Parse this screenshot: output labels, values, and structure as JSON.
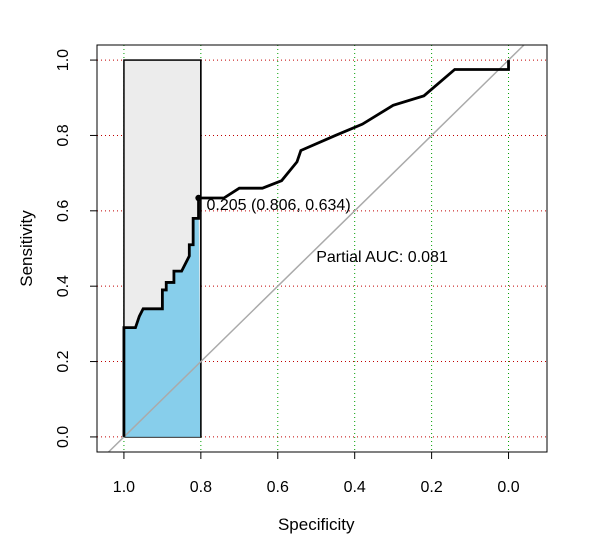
{
  "chart_data": {
    "type": "line",
    "title": "",
    "xlabel": "Specificity",
    "ylabel": "Sensitivity",
    "xlim": [
      1.07,
      -0.1
    ],
    "ylim": [
      -0.04,
      1.04
    ],
    "x_reversed": true,
    "x_ticks": [
      1.0,
      0.8,
      0.6,
      0.4,
      0.2,
      0.0
    ],
    "x_tick_labels": [
      "1.0",
      "0.8",
      "0.6",
      "0.4",
      "0.2",
      "0.0"
    ],
    "y_ticks": [
      0.0,
      0.2,
      0.4,
      0.6,
      0.8,
      1.0
    ],
    "y_tick_labels": [
      "0.0",
      "0.2",
      "0.4",
      "0.6",
      "0.8",
      "1.0"
    ],
    "grid": true,
    "grid_colors": {
      "x": "#00a000",
      "y": "#c00000"
    },
    "line_color": "#000000",
    "diagonal_color": "#aaaaaa",
    "partial_fill_color": "#87ceeb",
    "partial_box_color": "#ececec",
    "partial_range": [
      1.0,
      0.8
    ],
    "roc_points": [
      [
        1.0,
        0.0
      ],
      [
        1.0,
        0.29
      ],
      [
        0.97,
        0.29
      ],
      [
        0.96,
        0.32
      ],
      [
        0.95,
        0.34
      ],
      [
        0.9,
        0.34
      ],
      [
        0.9,
        0.39
      ],
      [
        0.89,
        0.39
      ],
      [
        0.89,
        0.41
      ],
      [
        0.87,
        0.41
      ],
      [
        0.87,
        0.44
      ],
      [
        0.85,
        0.44
      ],
      [
        0.83,
        0.48
      ],
      [
        0.83,
        0.51
      ],
      [
        0.82,
        0.51
      ],
      [
        0.82,
        0.58
      ],
      [
        0.806,
        0.58
      ],
      [
        0.806,
        0.634
      ],
      [
        0.74,
        0.634
      ],
      [
        0.7,
        0.66
      ],
      [
        0.64,
        0.66
      ],
      [
        0.59,
        0.68
      ],
      [
        0.55,
        0.73
      ],
      [
        0.54,
        0.76
      ],
      [
        0.45,
        0.8
      ],
      [
        0.38,
        0.83
      ],
      [
        0.3,
        0.88
      ],
      [
        0.22,
        0.905
      ],
      [
        0.14,
        0.975
      ],
      [
        0.0,
        0.975
      ],
      [
        0.0,
        1.0
      ]
    ],
    "threshold_point": {
      "x": 0.806,
      "y": 0.634,
      "label": "0.205 (0.806, 0.634)"
    },
    "partial_auc_label": "Partial AUC: 0.081",
    "partial_auc_label_pos": [
      0.5,
      0.48
    ]
  }
}
